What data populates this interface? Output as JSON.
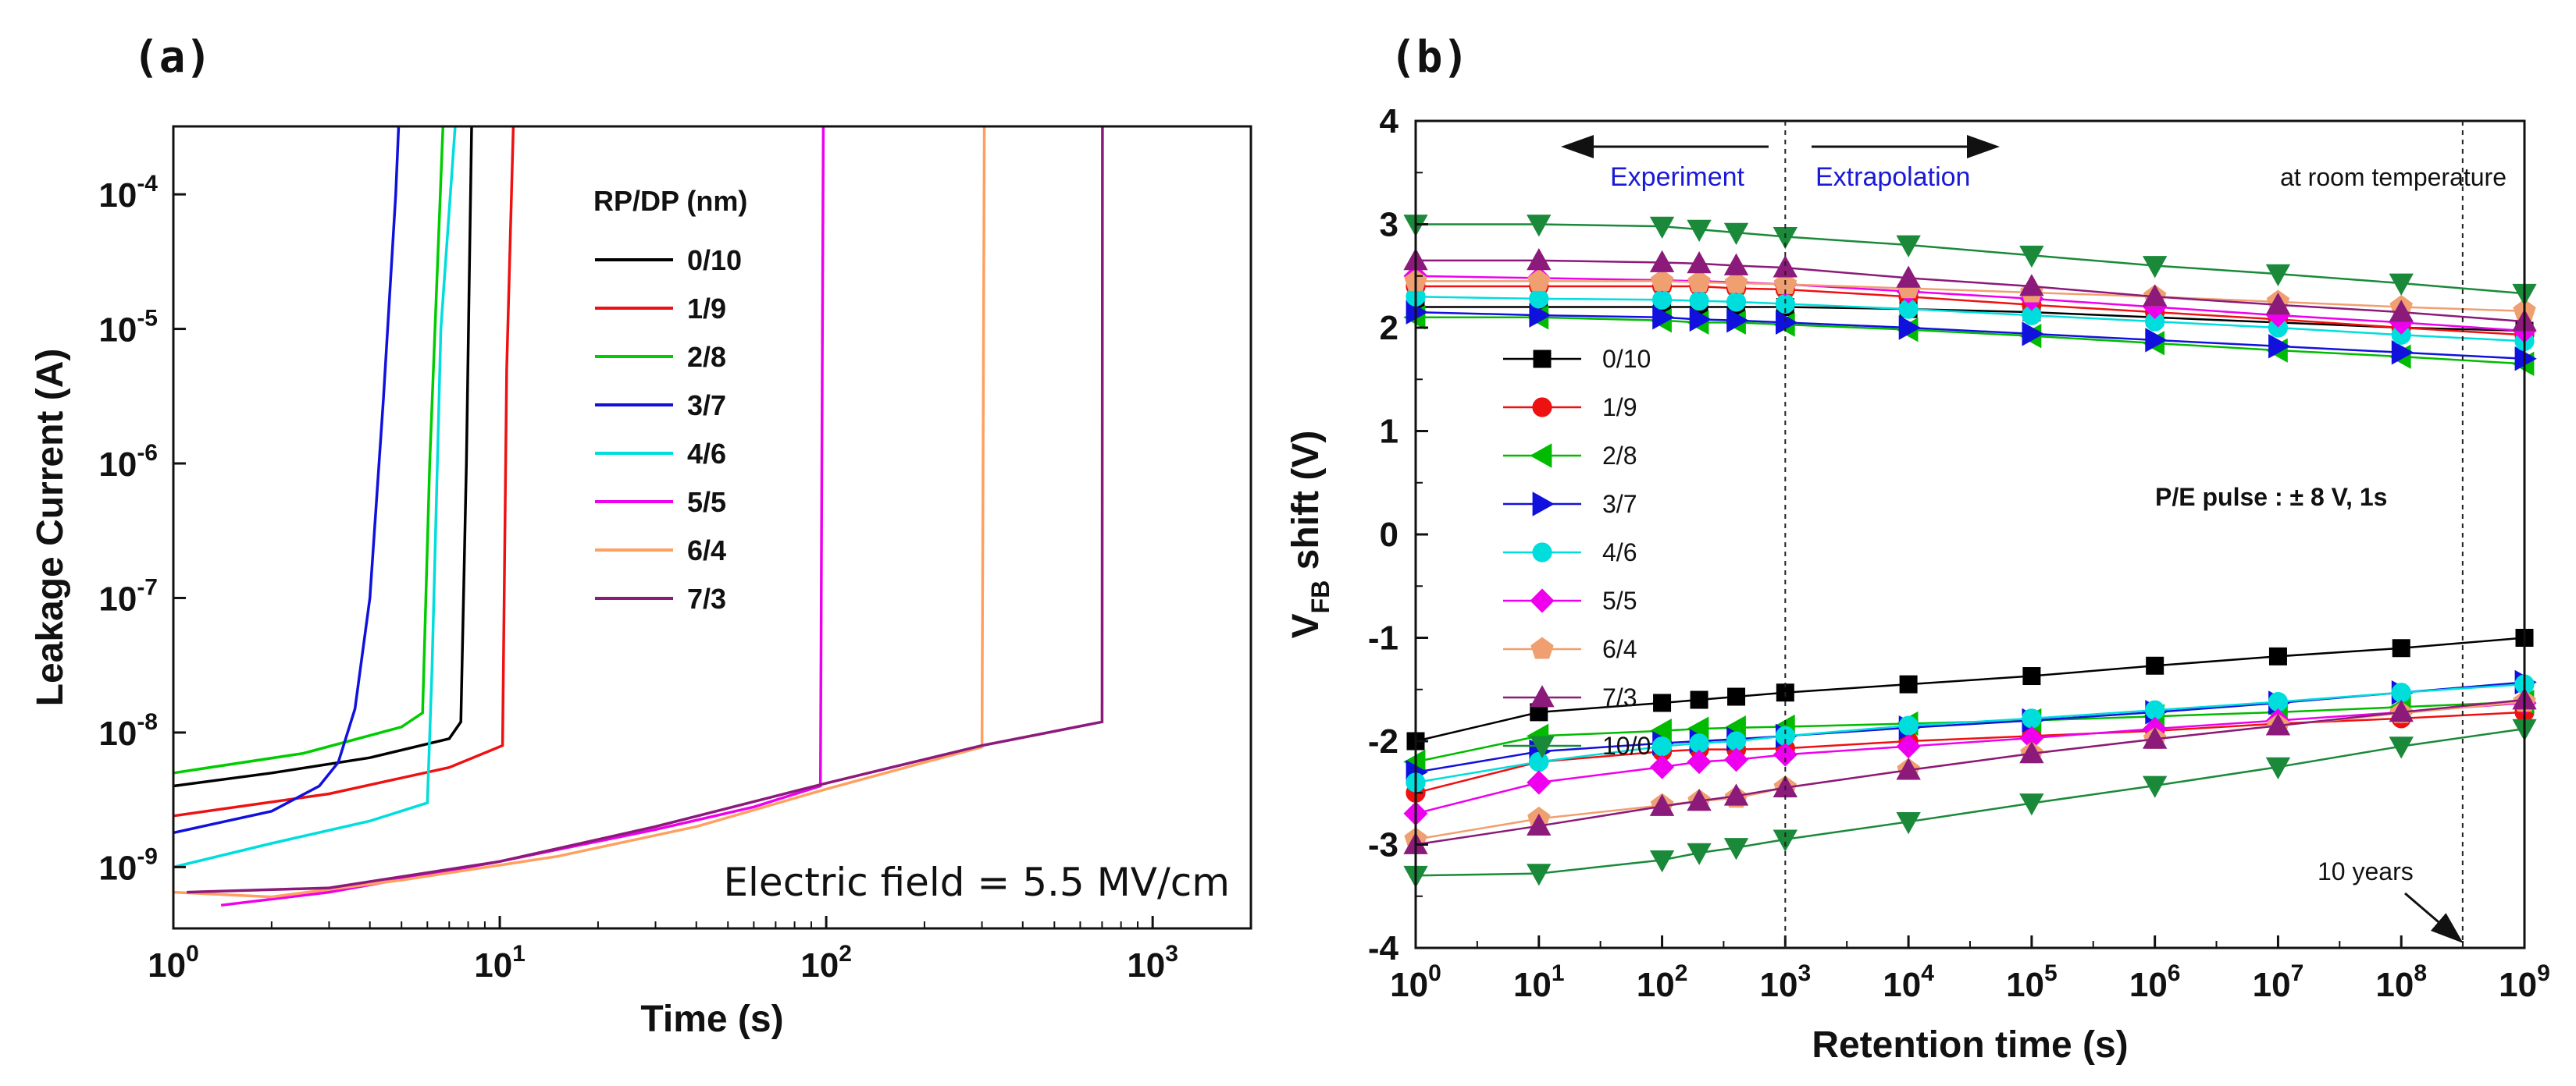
{
  "chart_data": [
    {
      "panel_label": "(a)",
      "type": "line",
      "xlabel": "Time (s)",
      "ylabel": "Leakage Current (A)",
      "xscale": "log",
      "yscale": "log",
      "xlim": [
        1,
        2000
      ],
      "ylim": [
        3.5e-10,
        0.00032
      ],
      "x_ticks": [
        {
          "base": "10",
          "exp": "0",
          "value": 1
        },
        {
          "base": "10",
          "exp": "1",
          "value": 10
        },
        {
          "base": "10",
          "exp": "2",
          "value": 100
        },
        {
          "base": "10",
          "exp": "3",
          "value": 1000
        }
      ],
      "y_ticks": [
        {
          "base": "10",
          "exp": "-9",
          "value": 1e-09
        },
        {
          "base": "10",
          "exp": "-8",
          "value": 1e-08
        },
        {
          "base": "10",
          "exp": "-7",
          "value": 1e-07
        },
        {
          "base": "10",
          "exp": "-6",
          "value": 1e-06
        },
        {
          "base": "10",
          "exp": "-5",
          "value": 1e-05
        },
        {
          "base": "10",
          "exp": "-4",
          "value": 0.0001
        }
      ],
      "legend_title": "RP/DP (nm)",
      "legend_position": "top-right",
      "annotation": "Electric field = 5.5 MV/cm",
      "series": [
        {
          "name": "0/10",
          "color": "#000000",
          "points": [
            [
              1,
              4e-09
            ],
            [
              2,
              5e-09
            ],
            [
              4,
              6.5e-09
            ],
            [
              7,
              9e-09
            ],
            [
              7.6,
              1.2e-08
            ],
            [
              7.9,
              1e-06
            ],
            [
              8.2,
              0.00032
            ]
          ]
        },
        {
          "name": "1/9",
          "color": "#ee1111",
          "points": [
            [
              1,
              2.4e-09
            ],
            [
              3,
              3.5e-09
            ],
            [
              7,
              5.5e-09
            ],
            [
              10.2,
              8e-09
            ],
            [
              10.5,
              5e-06
            ],
            [
              11,
              0.00032
            ]
          ]
        },
        {
          "name": "2/8",
          "color": "#00cc00",
          "points": [
            [
              1,
              5e-09
            ],
            [
              2.5,
              7e-09
            ],
            [
              5,
              1.1e-08
            ],
            [
              5.8,
              1.4e-08
            ],
            [
              6.1,
              1e-06
            ],
            [
              6.7,
              0.00032
            ]
          ]
        },
        {
          "name": "3/7",
          "color": "#1111dd",
          "points": [
            [
              1,
              1.8e-09
            ],
            [
              2,
              2.6e-09
            ],
            [
              2.8,
              4e-09
            ],
            [
              3.2,
              6e-09
            ],
            [
              3.6,
              1.5e-08
            ],
            [
              4,
              1e-07
            ],
            [
              4.4,
              3e-06
            ],
            [
              4.8,
              0.0001
            ],
            [
              4.9,
              0.00032
            ]
          ]
        },
        {
          "name": "4/6",
          "color": "#00dddd",
          "points": [
            [
              1,
              1e-09
            ],
            [
              2,
              1.5e-09
            ],
            [
              4,
              2.2e-09
            ],
            [
              6,
              3e-09
            ],
            [
              6.2,
              3e-08
            ],
            [
              6.6,
              1e-05
            ],
            [
              7.3,
              0.00032
            ]
          ]
        },
        {
          "name": "5/5",
          "color": "#ee00ee",
          "points": [
            [
              1.4,
              5.2e-10
            ],
            [
              3,
              6.5e-10
            ],
            [
              10,
              1.1e-09
            ],
            [
              30,
              1.9e-09
            ],
            [
              60,
              2.8e-09
            ],
            [
              96,
              4e-09
            ],
            [
              98,
              0.00032
            ]
          ]
        },
        {
          "name": "6/4",
          "color": "#ffa060",
          "points": [
            [
              1,
              6.5e-10
            ],
            [
              2,
              6e-10
            ],
            [
              5,
              8e-10
            ],
            [
              15,
              1.2e-09
            ],
            [
              40,
              2e-09
            ],
            [
              100,
              3.8e-09
            ],
            [
              200,
              6e-09
            ],
            [
              300,
              7.8e-09
            ],
            [
              305,
              0.00032
            ]
          ]
        },
        {
          "name": "7/3",
          "color": "#8b1a7a",
          "points": [
            [
              1.1,
              6.5e-10
            ],
            [
              3,
              7e-10
            ],
            [
              10,
              1.1e-09
            ],
            [
              30,
              2e-09
            ],
            [
              100,
              4.2e-09
            ],
            [
              300,
              8e-09
            ],
            [
              700,
              1.2e-08
            ],
            [
              702,
              0.00032
            ]
          ]
        }
      ]
    },
    {
      "panel_label": "(b)",
      "type": "line",
      "xlabel": "Retention time (s)",
      "ylabel_main": "V",
      "ylabel_sub": "FB",
      "ylabel_rest": " shift (V)",
      "xscale": "log",
      "xlim": [
        1,
        1000000000.0
      ],
      "ylim": [
        -4,
        4
      ],
      "x_ticks": [
        {
          "base": "10",
          "exp": "0",
          "value": 1
        },
        {
          "base": "10",
          "exp": "1",
          "value": 10
        },
        {
          "base": "10",
          "exp": "2",
          "value": 100
        },
        {
          "base": "10",
          "exp": "3",
          "value": 1000
        },
        {
          "base": "10",
          "exp": "4",
          "value": 10000.0
        },
        {
          "base": "10",
          "exp": "5",
          "value": 100000.0
        },
        {
          "base": "10",
          "exp": "6",
          "value": 1000000.0
        },
        {
          "base": "10",
          "exp": "7",
          "value": 10000000.0
        },
        {
          "base": "10",
          "exp": "8",
          "value": 100000000.0
        },
        {
          "base": "10",
          "exp": "9",
          "value": 1000000000.0
        }
      ],
      "y_ticks": [
        "4",
        "3",
        "2",
        "1",
        "0",
        "-1",
        "-2",
        "-3",
        "-4"
      ],
      "x_sample": [
        1,
        10,
        100,
        200,
        400,
        1000,
        10000,
        100000,
        1000000,
        10000000,
        100000000,
        1000000000
      ],
      "legend_position": "left",
      "vlines": [
        1000,
        315000000.0
      ],
      "annotations": {
        "experiment": "Experiment",
        "extrapolation": "Extrapolation",
        "temperature": "at room temperature",
        "pulse": "P/E pulse : ± 8 V, 1s",
        "ten_years": "10 years"
      },
      "series": [
        {
          "name": "0/10",
          "color": "#000000",
          "marker": "square",
          "upper": [
            2.2,
            2.2,
            2.2,
            2.2,
            2.2,
            2.2,
            2.18,
            2.15,
            2.1,
            2.05,
            2.0,
            1.97
          ],
          "lower": [
            -2.0,
            -1.72,
            -1.63,
            -1.6,
            -1.57,
            -1.53,
            -1.45,
            -1.37,
            -1.27,
            -1.18,
            -1.1,
            -1.0
          ]
        },
        {
          "name": "1/9",
          "color": "#ee1111",
          "marker": "circle",
          "upper": [
            2.4,
            2.4,
            2.4,
            2.4,
            2.38,
            2.37,
            2.3,
            2.22,
            2.15,
            2.08,
            2.0,
            1.93
          ],
          "lower": [
            -2.5,
            -2.2,
            -2.1,
            -2.08,
            -2.08,
            -2.07,
            -2.0,
            -1.95,
            -1.9,
            -1.83,
            -1.78,
            -1.72
          ]
        },
        {
          "name": "2/8",
          "color": "#00bb00",
          "marker": "triangle-left",
          "upper": [
            2.1,
            2.1,
            2.07,
            2.05,
            2.05,
            2.03,
            1.98,
            1.92,
            1.85,
            1.78,
            1.72,
            1.65
          ],
          "lower": [
            -2.2,
            -1.95,
            -1.9,
            -1.88,
            -1.87,
            -1.86,
            -1.83,
            -1.8,
            -1.76,
            -1.72,
            -1.67,
            -1.62
          ]
        },
        {
          "name": "3/7",
          "color": "#1111dd",
          "marker": "triangle-right",
          "upper": [
            2.15,
            2.12,
            2.1,
            2.08,
            2.07,
            2.05,
            2.0,
            1.94,
            1.88,
            1.82,
            1.76,
            1.7
          ],
          "lower": [
            -2.3,
            -2.1,
            -2.02,
            -2.0,
            -1.98,
            -1.95,
            -1.87,
            -1.8,
            -1.72,
            -1.63,
            -1.53,
            -1.43
          ]
        },
        {
          "name": "4/6",
          "color": "#00dddd",
          "marker": "circle",
          "upper": [
            2.3,
            2.28,
            2.27,
            2.26,
            2.25,
            2.23,
            2.18,
            2.12,
            2.06,
            2.0,
            1.93,
            1.87
          ],
          "lower": [
            -2.4,
            -2.2,
            -2.05,
            -2.02,
            -2.0,
            -1.95,
            -1.85,
            -1.78,
            -1.7,
            -1.62,
            -1.53,
            -1.45
          ]
        },
        {
          "name": "5/5",
          "color": "#ee00ee",
          "marker": "diamond",
          "upper": [
            2.5,
            2.48,
            2.46,
            2.45,
            2.44,
            2.42,
            2.35,
            2.28,
            2.2,
            2.12,
            2.05,
            1.97
          ],
          "lower": [
            -2.7,
            -2.4,
            -2.25,
            -2.2,
            -2.18,
            -2.13,
            -2.05,
            -1.97,
            -1.88,
            -1.8,
            -1.72,
            -1.63
          ]
        },
        {
          "name": "6/4",
          "color": "#f0a070",
          "marker": "pentagon",
          "upper": [
            2.45,
            2.45,
            2.45,
            2.44,
            2.43,
            2.42,
            2.38,
            2.34,
            2.3,
            2.25,
            2.2,
            2.16
          ],
          "lower": [
            -2.95,
            -2.75,
            -2.62,
            -2.58,
            -2.55,
            -2.45,
            -2.28,
            -2.12,
            -1.98,
            -1.85,
            -1.73,
            -1.62
          ]
        },
        {
          "name": "7/3",
          "color": "#8b1a7a",
          "marker": "triangle-up",
          "upper": [
            2.65,
            2.65,
            2.63,
            2.62,
            2.6,
            2.58,
            2.48,
            2.4,
            2.3,
            2.22,
            2.15,
            2.06
          ],
          "lower": [
            -3.0,
            -2.82,
            -2.63,
            -2.58,
            -2.53,
            -2.45,
            -2.28,
            -2.12,
            -1.98,
            -1.85,
            -1.72,
            -1.6
          ]
        },
        {
          "name": "10/0",
          "color": "#1a8a3a",
          "marker": "triangle-down",
          "upper": [
            3.0,
            3.0,
            2.98,
            2.95,
            2.92,
            2.88,
            2.8,
            2.7,
            2.6,
            2.52,
            2.43,
            2.33
          ],
          "lower": [
            -3.3,
            -3.28,
            -3.15,
            -3.08,
            -3.03,
            -2.95,
            -2.78,
            -2.6,
            -2.43,
            -2.25,
            -2.05,
            -1.88
          ]
        }
      ]
    }
  ]
}
